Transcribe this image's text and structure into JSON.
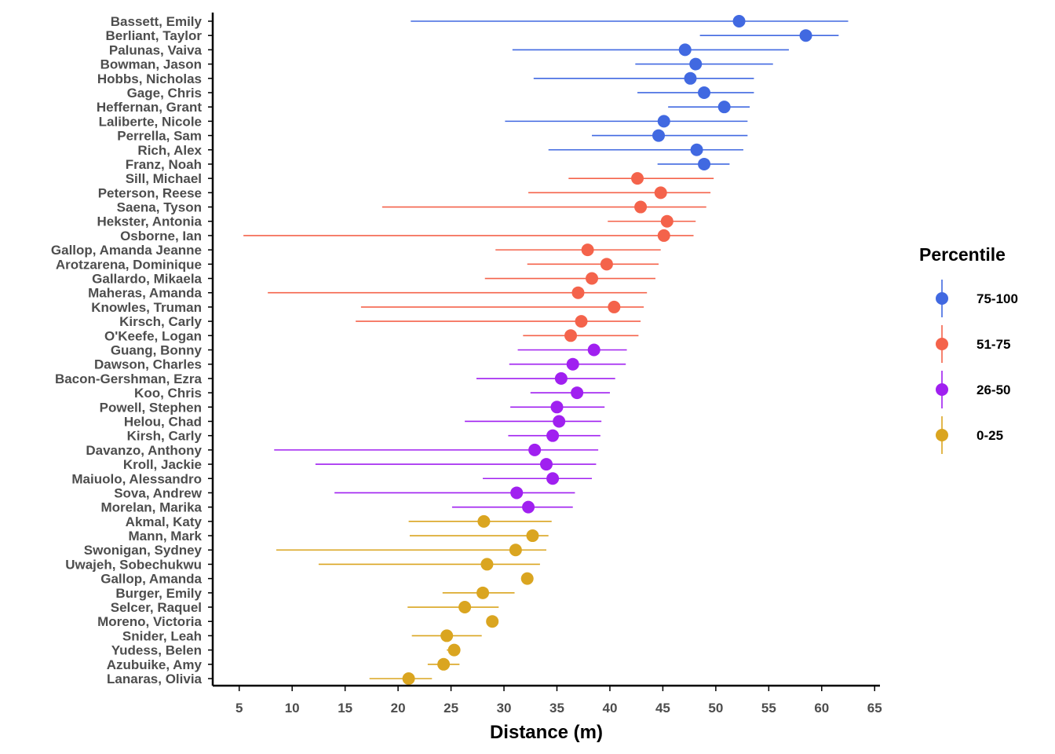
{
  "chart_data": {
    "type": "scatter",
    "xlabel": "Distance (m)",
    "xlim": [
      2.5,
      65.5
    ],
    "xticks": [
      5,
      10,
      15,
      20,
      25,
      30,
      35,
      40,
      45,
      50,
      55,
      60,
      65
    ],
    "legend": {
      "title": "Percentile",
      "placement": "right",
      "entries": [
        {
          "label": "75-100",
          "color": "#4169E1"
        },
        {
          "label": "51-75",
          "color": "#F4634B"
        },
        {
          "label": "26-50",
          "color": "#A020F0"
        },
        {
          "label": "0-25",
          "color": "#DAA520"
        }
      ]
    },
    "points": [
      {
        "name": "Bassett, Emily",
        "group": "75-100",
        "value": 52.2,
        "low": 21.2,
        "high": 62.5
      },
      {
        "name": "Berliant, Taylor",
        "group": "75-100",
        "value": 58.5,
        "low": 48.5,
        "high": 61.6
      },
      {
        "name": "Palunas, Vaiva",
        "group": "75-100",
        "value": 47.1,
        "low": 30.8,
        "high": 56.9
      },
      {
        "name": "Bowman, Jason",
        "group": "75-100",
        "value": 48.1,
        "low": 42.4,
        "high": 55.4
      },
      {
        "name": "Hobbs, Nicholas",
        "group": "75-100",
        "value": 47.6,
        "low": 32.8,
        "high": 53.6
      },
      {
        "name": "Gage, Chris",
        "group": "75-100",
        "value": 48.9,
        "low": 42.6,
        "high": 53.6
      },
      {
        "name": "Heffernan, Grant",
        "group": "75-100",
        "value": 50.8,
        "low": 45.5,
        "high": 53.2
      },
      {
        "name": "Laliberte, Nicole",
        "group": "75-100",
        "value": 45.1,
        "low": 30.1,
        "high": 53.0
      },
      {
        "name": "Perrella, Sam",
        "group": "75-100",
        "value": 44.6,
        "low": 38.3,
        "high": 53.0
      },
      {
        "name": "Rich, Alex",
        "group": "75-100",
        "value": 48.2,
        "low": 34.2,
        "high": 52.6
      },
      {
        "name": "Franz, Noah",
        "group": "75-100",
        "value": 48.9,
        "low": 44.5,
        "high": 51.3
      },
      {
        "name": "Sill, Michael",
        "group": "51-75",
        "value": 42.6,
        "low": 36.1,
        "high": 49.8
      },
      {
        "name": "Peterson, Reese",
        "group": "51-75",
        "value": 44.8,
        "low": 32.3,
        "high": 49.5
      },
      {
        "name": "Saena, Tyson",
        "group": "51-75",
        "value": 42.9,
        "low": 18.5,
        "high": 49.1
      },
      {
        "name": "Hekster, Antonia",
        "group": "51-75",
        "value": 45.4,
        "low": 39.8,
        "high": 48.1
      },
      {
        "name": "Osborne, Ian",
        "group": "51-75",
        "value": 45.1,
        "low": 5.4,
        "high": 47.9
      },
      {
        "name": "Gallop, Amanda Jeanne",
        "group": "51-75",
        "value": 37.9,
        "low": 29.2,
        "high": 44.8
      },
      {
        "name": "Arotzarena, Dominique",
        "group": "51-75",
        "value": 39.7,
        "low": 32.2,
        "high": 44.6
      },
      {
        "name": "Gallardo, Mikaela",
        "group": "51-75",
        "value": 38.3,
        "low": 28.2,
        "high": 44.3
      },
      {
        "name": "Maheras, Amanda",
        "group": "51-75",
        "value": 37.0,
        "low": 7.7,
        "high": 43.5
      },
      {
        "name": "Knowles, Truman",
        "group": "51-75",
        "value": 40.4,
        "low": 16.5,
        "high": 43.2
      },
      {
        "name": "Kirsch, Carly",
        "group": "51-75",
        "value": 37.3,
        "low": 16.0,
        "high": 42.9
      },
      {
        "name": "O'Keefe, Logan",
        "group": "51-75",
        "value": 36.3,
        "low": 31.8,
        "high": 42.7
      },
      {
        "name": "Guang, Bonny",
        "group": "26-50",
        "value": 38.5,
        "low": 31.3,
        "high": 41.6
      },
      {
        "name": "Dawson, Charles",
        "group": "26-50",
        "value": 36.5,
        "low": 30.5,
        "high": 41.5
      },
      {
        "name": "Bacon-Gershman, Ezra",
        "group": "26-50",
        "value": 35.4,
        "low": 27.4,
        "high": 40.5
      },
      {
        "name": "Koo, Chris",
        "group": "26-50",
        "value": 36.9,
        "low": 32.5,
        "high": 40.0
      },
      {
        "name": "Powell, Stephen",
        "group": "26-50",
        "value": 35.0,
        "low": 30.6,
        "high": 39.5
      },
      {
        "name": "Helou, Chad",
        "group": "26-50",
        "value": 35.2,
        "low": 26.3,
        "high": 39.2
      },
      {
        "name": "Kirsh, Carly",
        "group": "26-50",
        "value": 34.6,
        "low": 30.4,
        "high": 39.1
      },
      {
        "name": "Davanzo, Anthony",
        "group": "26-50",
        "value": 32.9,
        "low": 8.3,
        "high": 38.9
      },
      {
        "name": "Kroll, Jackie",
        "group": "26-50",
        "value": 34.0,
        "low": 12.2,
        "high": 38.7
      },
      {
        "name": "Maiuolo, Alessandro",
        "group": "26-50",
        "value": 34.6,
        "low": 28.0,
        "high": 38.3
      },
      {
        "name": "Sova, Andrew",
        "group": "26-50",
        "value": 31.2,
        "low": 14.0,
        "high": 36.7
      },
      {
        "name": "Morelan, Marika",
        "group": "26-50",
        "value": 32.3,
        "low": 25.1,
        "high": 36.5
      },
      {
        "name": "Akmal, Katy",
        "group": "0-25",
        "value": 28.1,
        "low": 21.0,
        "high": 34.5
      },
      {
        "name": "Mann, Mark",
        "group": "0-25",
        "value": 32.7,
        "low": 21.1,
        "high": 34.2
      },
      {
        "name": "Swonigan, Sydney",
        "group": "0-25",
        "value": 31.1,
        "low": 8.5,
        "high": 34.0
      },
      {
        "name": "Uwajeh, Sobechukwu",
        "group": "0-25",
        "value": 28.4,
        "low": 12.5,
        "high": 33.4
      },
      {
        "name": "Gallop, Amanda",
        "group": "0-25",
        "value": 32.2,
        "low": 32.2,
        "high": 32.2
      },
      {
        "name": "Burger, Emily",
        "group": "0-25",
        "value": 28.0,
        "low": 24.2,
        "high": 31.0
      },
      {
        "name": "Selcer, Raquel",
        "group": "0-25",
        "value": 26.3,
        "low": 20.9,
        "high": 29.5
      },
      {
        "name": "Moreno, Victoria",
        "group": "0-25",
        "value": 28.9,
        "low": 28.9,
        "high": 28.9
      },
      {
        "name": "Snider, Leah",
        "group": "0-25",
        "value": 24.6,
        "low": 21.3,
        "high": 27.9
      },
      {
        "name": "Yudess, Belen",
        "group": "0-25",
        "value": 25.3,
        "low": 24.6,
        "high": 25.6
      },
      {
        "name": "Azubuike, Amy",
        "group": "0-25",
        "value": 24.3,
        "low": 22.8,
        "high": 25.8
      },
      {
        "name": "Lanaras, Olivia",
        "group": "0-25",
        "value": 21.0,
        "low": 17.3,
        "high": 23.2
      }
    ]
  }
}
